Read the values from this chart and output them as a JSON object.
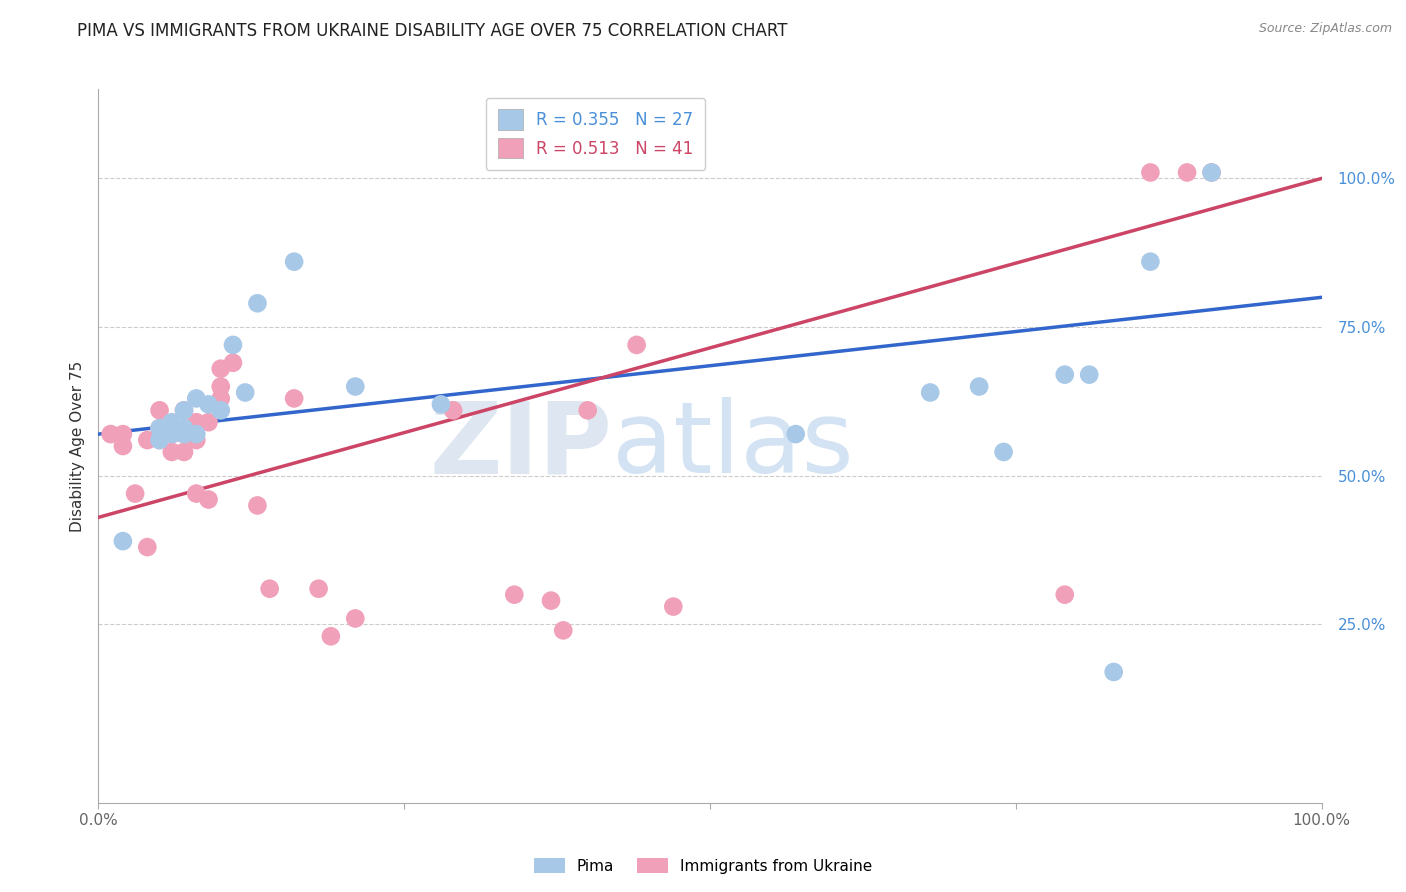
{
  "title": "PIMA VS IMMIGRANTS FROM UKRAINE DISABILITY AGE OVER 75 CORRELATION CHART",
  "source_text": "Source: ZipAtlas.com",
  "ylabel": "Disability Age Over 75",
  "watermark_zip": "ZIP",
  "watermark_atlas": "atlas",
  "blue_label": "Pima",
  "pink_label": "Immigrants from Ukraine",
  "blue_R": 0.355,
  "blue_N": 27,
  "pink_R": 0.513,
  "pink_N": 41,
  "blue_color": "#a8c8e8",
  "pink_color": "#f0a0b8",
  "blue_line_color": "#3366cc",
  "pink_line_color": "#cc4466",
  "blue_line_start_y": 0.57,
  "blue_line_end_y": 0.8,
  "pink_line_start_y": 0.43,
  "pink_line_end_y": 1.0,
  "xlim": [
    0.0,
    1.0
  ],
  "ylim": [
    -0.05,
    1.15
  ],
  "yticks": [
    0.25,
    0.5,
    0.75,
    1.0
  ],
  "ytick_labels": [
    "25.0%",
    "50.0%",
    "75.0%",
    "100.0%"
  ],
  "xticks": [
    0.0,
    0.25,
    0.5,
    0.75,
    1.0
  ],
  "xtick_labels": [
    "0.0%",
    "",
    "",
    "",
    "100.0%"
  ],
  "blue_x": [
    0.02,
    0.05,
    0.05,
    0.06,
    0.06,
    0.07,
    0.07,
    0.07,
    0.08,
    0.08,
    0.09,
    0.1,
    0.11,
    0.12,
    0.13,
    0.16,
    0.21,
    0.28,
    0.57,
    0.68,
    0.72,
    0.74,
    0.79,
    0.81,
    0.83,
    0.86,
    0.91
  ],
  "blue_y": [
    0.39,
    0.56,
    0.58,
    0.57,
    0.59,
    0.57,
    0.58,
    0.61,
    0.57,
    0.63,
    0.62,
    0.61,
    0.72,
    0.64,
    0.79,
    0.86,
    0.65,
    0.62,
    0.57,
    0.64,
    0.65,
    0.54,
    0.67,
    0.67,
    0.17,
    0.86,
    1.01
  ],
  "pink_x": [
    0.01,
    0.02,
    0.02,
    0.03,
    0.04,
    0.04,
    0.05,
    0.05,
    0.05,
    0.06,
    0.06,
    0.06,
    0.07,
    0.07,
    0.07,
    0.08,
    0.08,
    0.08,
    0.09,
    0.09,
    0.1,
    0.1,
    0.1,
    0.11,
    0.13,
    0.14,
    0.16,
    0.18,
    0.19,
    0.21,
    0.29,
    0.34,
    0.37,
    0.38,
    0.4,
    0.44,
    0.47,
    0.79,
    0.86,
    0.89,
    0.91
  ],
  "pink_y": [
    0.57,
    0.57,
    0.55,
    0.47,
    0.38,
    0.56,
    0.56,
    0.58,
    0.61,
    0.54,
    0.57,
    0.57,
    0.54,
    0.57,
    0.61,
    0.47,
    0.56,
    0.59,
    0.46,
    0.59,
    0.63,
    0.65,
    0.68,
    0.69,
    0.45,
    0.31,
    0.63,
    0.31,
    0.23,
    0.26,
    0.61,
    0.3,
    0.29,
    0.24,
    0.61,
    0.72,
    0.28,
    0.3,
    1.01,
    1.01,
    1.01
  ],
  "background_color": "#ffffff",
  "grid_color": "#cccccc",
  "title_fontsize": 12,
  "label_fontsize": 11,
  "tick_fontsize": 11,
  "legend_fontsize": 12,
  "dot_size": 180
}
